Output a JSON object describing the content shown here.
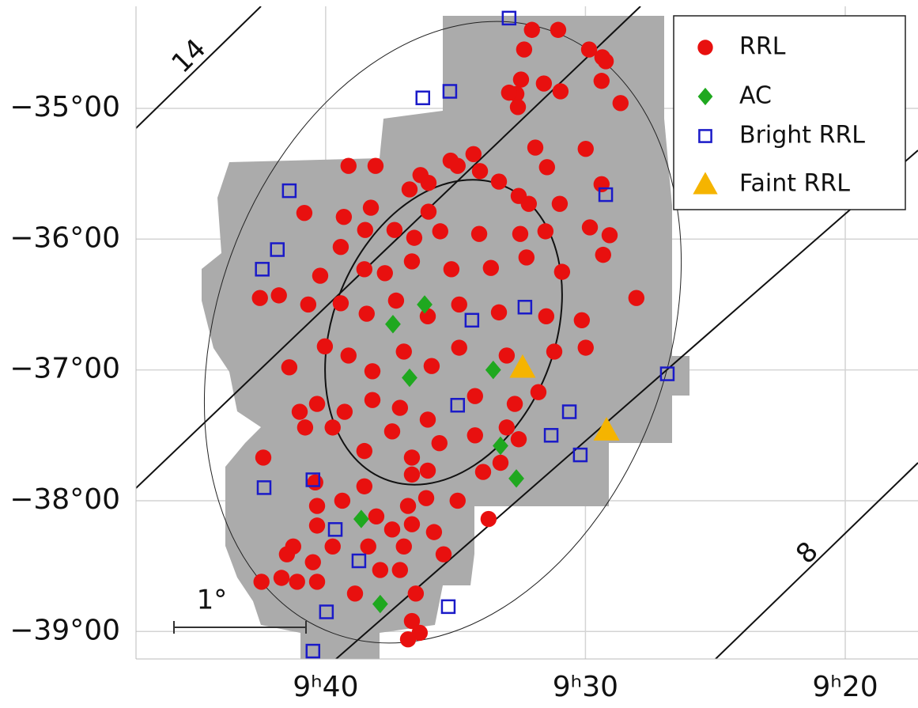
{
  "chart_data": {
    "type": "scatter",
    "xlim": [
      587.3,
      557.2
    ],
    "ylim": [
      -39.21,
      -34.22
    ],
    "xticks": [
      {
        "value": 580,
        "label": "9ʰ40"
      },
      {
        "value": 570,
        "label": "9ʰ30"
      },
      {
        "value": 560,
        "label": "9ʰ20"
      }
    ],
    "yticks": [
      {
        "value": -35,
        "label": "−35°00"
      },
      {
        "value": -36,
        "label": "−36°00"
      },
      {
        "value": -37,
        "label": "−37°00"
      },
      {
        "value": -38,
        "label": "−38°00"
      },
      {
        "value": -39,
        "label": "−39°00"
      }
    ],
    "grid": true,
    "legend": "upper right",
    "annotations": [
      "14",
      "8",
      "1°"
    ],
    "series": [
      {
        "name": "RRL",
        "color": "#e8100f",
        "marker": "circle",
        "x": [
          572.06,
          571.05,
          572.36,
          569.86,
          569.35,
          569.22,
          572.48,
          572.66,
          572.94,
          571.6,
          569.38,
          570.96,
          568.65,
          572.6,
          574.31,
          569.99,
          571.93,
          571.48,
          569.38,
          574.92,
          575.19,
          574.06,
          576.35,
          576.04,
          579.12,
          578.08,
          578.26,
          576.77,
          576.04,
          573.33,
          580.82,
          579.3,
          572.57,
          572.18,
          570.99,
          569.83,
          569.07,
          569.32,
          578.48,
          577.35,
          576.59,
          575.59,
          574.09,
          572.51,
          571.54,
          579.42,
          578.51,
          580.21,
          577.72,
          576.68,
          575.16,
          573.64,
          572.27,
          570.9,
          582.53,
          581.8,
          580.67,
          579.42,
          578.42,
          577.29,
          576.07,
          574.86,
          573.33,
          571.51,
          570.14,
          568.04,
          581.4,
          580.03,
          579.12,
          578.2,
          576.99,
          575.92,
          574.86,
          573.03,
          571.2,
          569.99,
          581.0,
          580.33,
          579.27,
          578.2,
          577.14,
          576.07,
          574.25,
          572.72,
          571.81,
          580.79,
          579.73,
          578.51,
          577.44,
          576.68,
          575.62,
          574.25,
          573.03,
          572.57,
          576.68,
          576.07,
          573.94,
          573.27,
          582.4,
          580.4,
          579.36,
          580.33,
          578.51,
          578.05,
          576.83,
          576.13,
          574.92,
          576.68,
          575.83,
          573.73,
          580.33,
          579.73,
          578.36,
          577.44,
          576.99,
          581.25,
          581.49,
          580.49,
          577.9,
          577.14,
          575.46,
          582.47,
          581.7,
          581.1,
          580.33,
          578.87,
          576.53,
          576.68,
          576.38,
          576.83
        ],
        "y": [
          -34.4,
          -34.4,
          -34.55,
          -34.55,
          -34.61,
          -34.64,
          -34.78,
          -34.89,
          -34.88,
          -34.81,
          -34.79,
          -34.87,
          -34.96,
          -34.99,
          -35.35,
          -35.31,
          -35.3,
          -35.45,
          -35.58,
          -35.44,
          -35.4,
          -35.48,
          -35.51,
          -35.57,
          -35.44,
          -35.44,
          -35.76,
          -35.62,
          -35.79,
          -35.56,
          -35.8,
          -35.83,
          -35.67,
          -35.73,
          -35.73,
          -35.91,
          -35.97,
          -36.12,
          -35.93,
          -35.93,
          -35.99,
          -35.94,
          -35.96,
          -35.96,
          -35.94,
          -36.06,
          -36.23,
          -36.28,
          -36.26,
          -36.17,
          -36.23,
          -36.22,
          -36.14,
          -36.25,
          -36.45,
          -36.43,
          -36.5,
          -36.49,
          -36.57,
          -36.47,
          -36.59,
          -36.5,
          -36.56,
          -36.59,
          -36.62,
          -36.45,
          -36.98,
          -36.82,
          -36.89,
          -37.01,
          -36.86,
          -36.97,
          -36.83,
          -36.89,
          -36.86,
          -36.83,
          -37.32,
          -37.26,
          -37.32,
          -37.23,
          -37.29,
          -37.38,
          -37.2,
          -37.26,
          -37.17,
          -37.44,
          -37.44,
          -37.62,
          -37.47,
          -37.67,
          -37.56,
          -37.5,
          -37.44,
          -37.53,
          -37.8,
          -37.77,
          -37.78,
          -37.71,
          -37.67,
          -37.86,
          -38.0,
          -38.04,
          -37.89,
          -38.12,
          -38.04,
          -37.98,
          -38.0,
          -38.18,
          -38.24,
          -38.14,
          -38.19,
          -38.35,
          -38.35,
          -38.22,
          -38.35,
          -38.35,
          -38.41,
          -38.47,
          -38.53,
          -38.53,
          -38.41,
          -38.62,
          -38.59,
          -38.62,
          -38.62,
          -38.71,
          -38.71,
          -38.92,
          -39.01,
          -39.06
        ]
      },
      {
        "name": "AC",
        "color": "#1fa81f",
        "marker": "diamond",
        "x": [
          576.19,
          577.41,
          576.77,
          573.55,
          573.27,
          572.66,
          578.63,
          577.9
        ],
        "y": [
          -36.5,
          -36.65,
          -37.06,
          -37.0,
          -37.58,
          -37.83,
          -38.14,
          -38.79
        ]
      },
      {
        "name": "Bright RRL",
        "color": "#1a1ac8",
        "marker": "square",
        "x": [
          572.94,
          576.26,
          575.22,
          581.4,
          581.86,
          582.44,
          569.22,
          572.33,
          574.37,
          574.92,
          570.62,
          571.32,
          570.2,
          566.85,
          582.37,
          580.49,
          579.63,
          578.72,
          579.97,
          575.28,
          580.49
        ],
        "y": [
          -34.31,
          -34.92,
          -34.87,
          -35.63,
          -36.08,
          -36.23,
          -35.66,
          -36.52,
          -36.62,
          -37.27,
          -37.32,
          -37.5,
          -37.65,
          -37.03,
          -37.9,
          -37.84,
          -38.22,
          -38.46,
          -38.85,
          -38.81,
          -39.15
        ]
      },
      {
        "name": "Faint RRL",
        "color": "#f5b400",
        "marker": "triangle",
        "x": [
          572.42,
          569.19
        ],
        "y": [
          -36.98,
          -37.46
        ]
      }
    ]
  }
}
